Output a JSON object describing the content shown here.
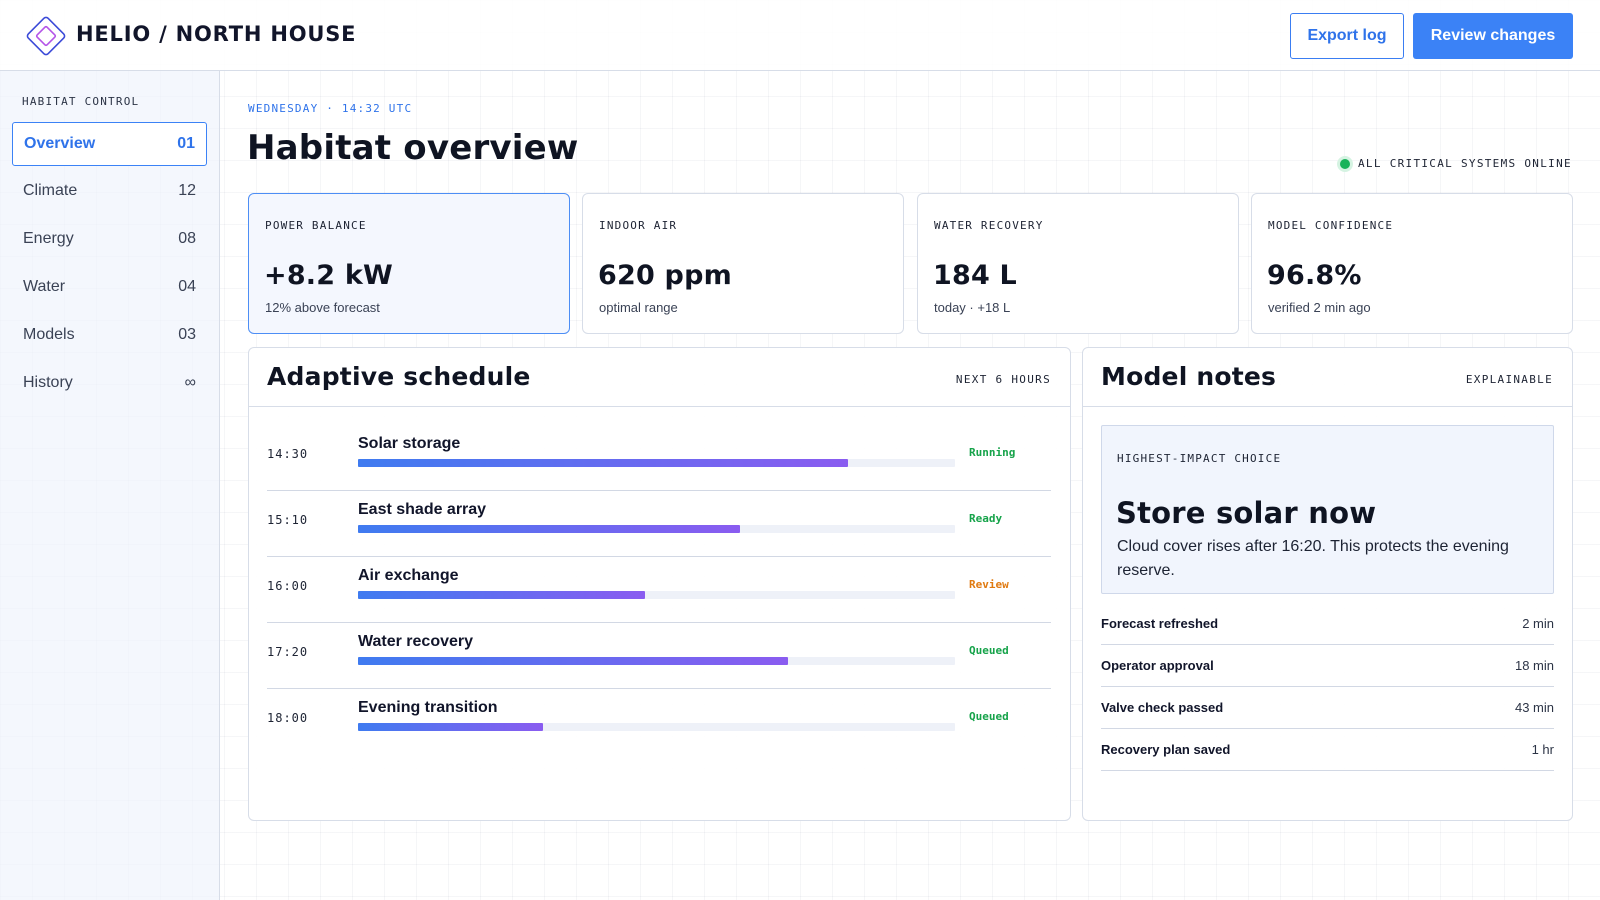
{
  "header": {
    "brand": "HELIO / NORTH HOUSE",
    "export_label": "Export log",
    "review_label": "Review changes",
    "accent_color": "#3b82f6"
  },
  "sidebar": {
    "heading": "HABITAT CONTROL",
    "items": [
      {
        "label": "Overview",
        "count": "01",
        "active": true
      },
      {
        "label": "Climate",
        "count": "12"
      },
      {
        "label": "Energy",
        "count": "08"
      },
      {
        "label": "Water",
        "count": "04"
      },
      {
        "label": "Models",
        "count": "03"
      },
      {
        "label": "History",
        "count": "∞"
      }
    ]
  },
  "main": {
    "eyebrow": "WEDNESDAY · 14:32 UTC",
    "title": "Habitat overview",
    "system_status": "ALL CRITICAL SYSTEMS ONLINE",
    "status_color": "#18b35a",
    "metrics": [
      {
        "label": "POWER BALANCE",
        "value": "+8.2 kW",
        "sub": "12% above forecast"
      },
      {
        "label": "INDOOR AIR",
        "value": "620 ppm",
        "sub": "optimal range"
      },
      {
        "label": "WATER RECOVERY",
        "value": "184 L",
        "sub": "today · +18 L"
      },
      {
        "label": "MODEL CONFIDENCE",
        "value": "96.8%",
        "sub": "verified 2 min ago"
      }
    ]
  },
  "schedule": {
    "title": "Adaptive schedule",
    "tag": "NEXT 6 HOURS",
    "rows": [
      {
        "time": "14:30",
        "name": "Solar storage",
        "progress": 0.82,
        "status": "Running",
        "status_color": "#16a34a"
      },
      {
        "time": "15:10",
        "name": "East shade array",
        "progress": 0.64,
        "status": "Ready",
        "status_color": "#16a34a"
      },
      {
        "time": "16:00",
        "name": "Air exchange",
        "progress": 0.48,
        "status": "Review",
        "status_color": "#e07a10"
      },
      {
        "time": "17:20",
        "name": "Water recovery",
        "progress": 0.72,
        "status": "Queued",
        "status_color": "#16a34a"
      },
      {
        "time": "18:00",
        "name": "Evening transition",
        "progress": 0.31,
        "status": "Queued",
        "status_color": "#16a34a"
      }
    ]
  },
  "notes": {
    "title": "Model notes",
    "tag": "EXPLAINABLE",
    "choice": {
      "label": "HIGHEST-IMPACT CHOICE",
      "title": "Store solar now",
      "body": "Cloud cover rises after 16:20. This protects the evening reserve."
    },
    "log": [
      {
        "label": "Forecast refreshed",
        "time": "2 min"
      },
      {
        "label": "Operator approval",
        "time": "18 min"
      },
      {
        "label": "Valve check passed",
        "time": "43 min"
      },
      {
        "label": "Recovery plan saved",
        "time": "1 hr"
      }
    ]
  }
}
